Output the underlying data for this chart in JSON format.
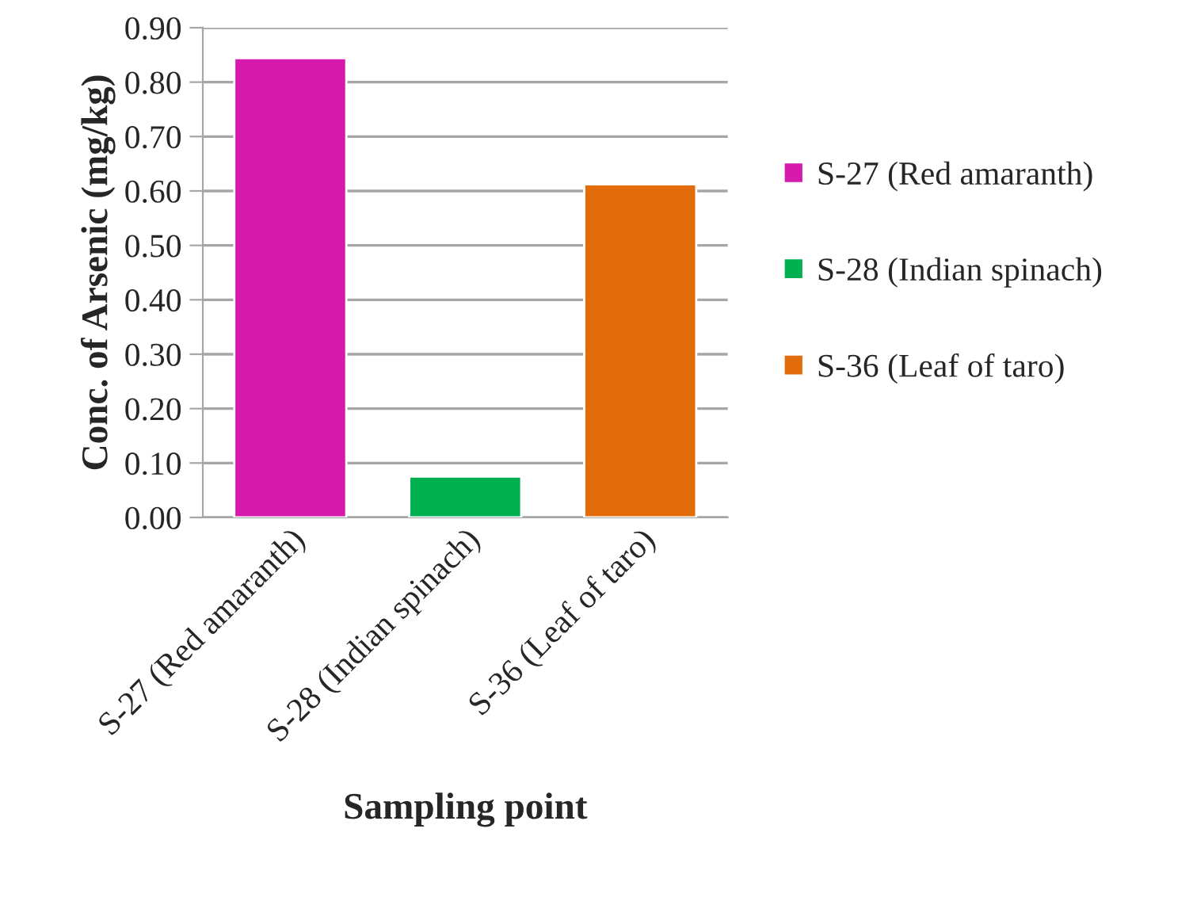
{
  "chart_data": {
    "type": "bar",
    "xlabel": "Sampling point",
    "ylabel": "Conc. of Arsenic (mg/kg)",
    "categories": [
      "S-27 (Red amaranth)",
      "S-28 (Indian spinach)",
      "S-36 (Leaf of taro)"
    ],
    "series": [
      {
        "name": "S-27 (Red amaranth)",
        "color": "#d61aae",
        "values": [
          0.844,
          null,
          null
        ]
      },
      {
        "name": "S-28 (Indian spinach)",
        "color": "#00b050",
        "values": [
          null,
          0.075,
          null
        ]
      },
      {
        "name": "S-36 (Leaf of taro)",
        "color": "#e36c0a",
        "values": [
          null,
          null,
          0.612
        ]
      }
    ],
    "ylim": [
      0,
      0.9
    ],
    "yticks": [
      {
        "value": 0,
        "label": "0.00"
      },
      {
        "value": 0.1,
        "label": "0.10"
      },
      {
        "value": 0.2,
        "label": "0.20"
      },
      {
        "value": 0.3,
        "label": "0.30"
      },
      {
        "value": 0.4,
        "label": "0.40"
      },
      {
        "value": 0.5,
        "label": "0.50"
      },
      {
        "value": 0.6,
        "label": "0.60"
      },
      {
        "value": 0.7,
        "label": "0.70"
      },
      {
        "value": 0.8,
        "label": "0.80"
      },
      {
        "value": 0.9,
        "label": "0.90"
      }
    ],
    "grid": "y",
    "legend": "right"
  }
}
